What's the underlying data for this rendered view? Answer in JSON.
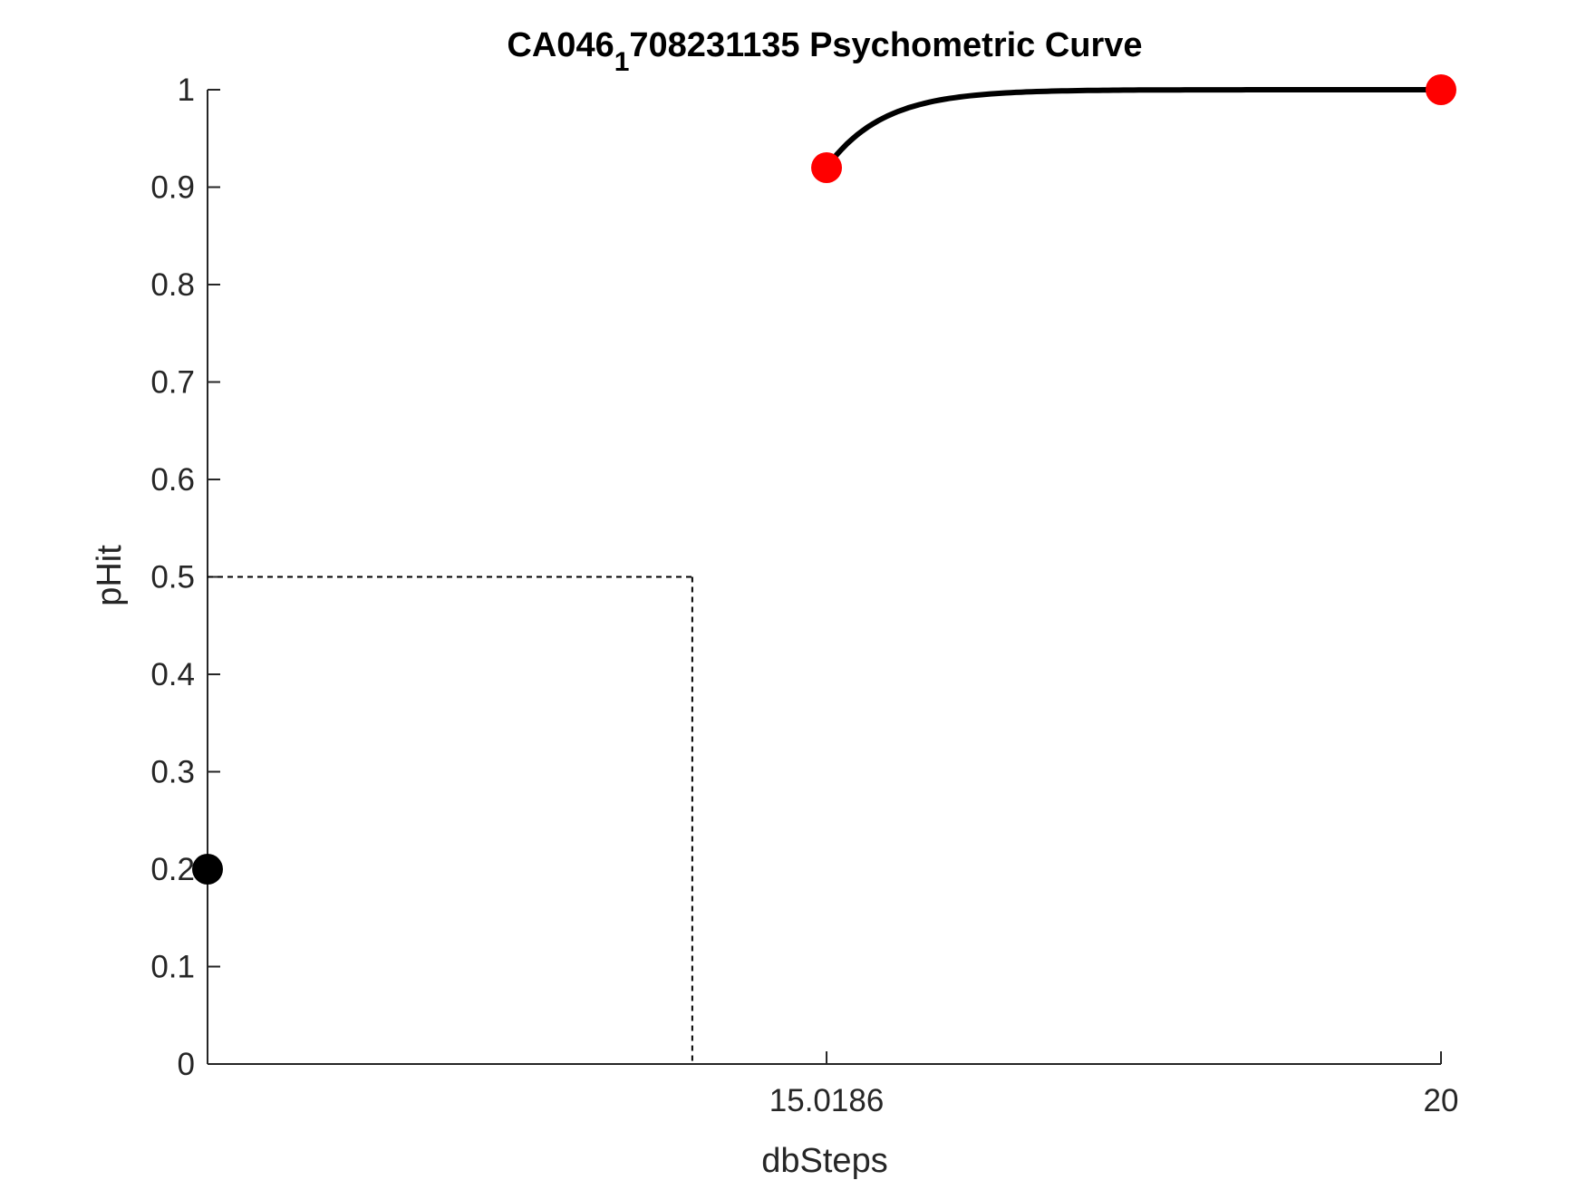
{
  "chart_data": {
    "type": "line",
    "title": {
      "main": "CA046",
      "subscript": "1",
      "rest": "708231135 Psychometric Curve"
    },
    "xlabel": "dbSteps",
    "ylabel": "pHit",
    "xlim": [
      10,
      20
    ],
    "ylim": [
      0,
      1
    ],
    "x_ticks": [
      {
        "value": 15.0186,
        "label": "15.0186"
      },
      {
        "value": 20,
        "label": "20"
      }
    ],
    "y_ticks": [
      {
        "value": 0,
        "label": "0"
      },
      {
        "value": 0.1,
        "label": "0.1"
      },
      {
        "value": 0.2,
        "label": "0.2"
      },
      {
        "value": 0.3,
        "label": "0.3"
      },
      {
        "value": 0.4,
        "label": "0.4"
      },
      {
        "value": 0.5,
        "label": "0.5"
      },
      {
        "value": 0.6,
        "label": "0.6"
      },
      {
        "value": 0.7,
        "label": "0.7"
      },
      {
        "value": 0.8,
        "label": "0.8"
      },
      {
        "value": 0.9,
        "label": "0.9"
      },
      {
        "value": 1,
        "label": "1"
      }
    ],
    "threshold": {
      "x": 13.93,
      "y": 0.5
    },
    "fit_curve": {
      "x_start": 15.0186,
      "x_end": 20,
      "y_start": 0.92,
      "y_end": 1.0,
      "color": "#000000"
    },
    "series": [
      {
        "points": [
          {
            "x": 15.0186,
            "y": 0.92
          },
          {
            "x": 20,
            "y": 1.0
          }
        ],
        "color": "#ff0000"
      },
      {
        "points": [
          {
            "x": 10,
            "y": 0.2
          }
        ],
        "color": "#000000"
      }
    ],
    "grid": false
  }
}
